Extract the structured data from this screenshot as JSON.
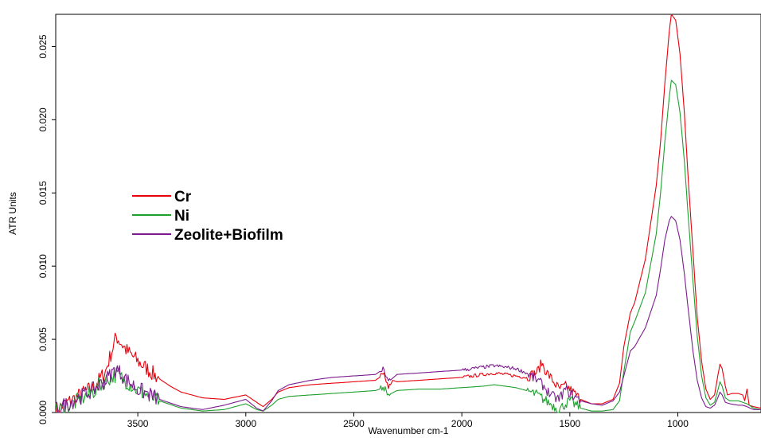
{
  "chart_data": {
    "type": "line",
    "title": "",
    "xlabel": "Wavenumber cm-1",
    "ylabel": "ATR Units",
    "xlim": [
      3880,
      615
    ],
    "ylim": [
      0,
      0.0272
    ],
    "x_reversed": true,
    "x_ticks": [
      3500,
      3000,
      2500,
      2000,
      1500,
      1000
    ],
    "x_tick_labels": [
      "3500",
      "3000",
      "2500",
      "2000",
      "1500",
      "1000"
    ],
    "y_ticks": [
      0,
      0.005,
      0.01,
      0.015,
      0.02,
      0.025
    ],
    "y_tick_labels": [
      "0.000",
      "0.005",
      "0.010",
      "0.015",
      "0.020",
      "0.025"
    ],
    "grid": false,
    "legend_position": "middle-left",
    "series": [
      {
        "name": "Cr",
        "color": "#e8000b",
        "points": [
          [
            3880,
            0.0002
          ],
          [
            3800,
            0.0009
          ],
          [
            3700,
            0.0018
          ],
          [
            3650,
            0.0028
          ],
          [
            3620,
            0.0042
          ],
          [
            3600,
            0.0052
          ],
          [
            3580,
            0.0048
          ],
          [
            3550,
            0.0042
          ],
          [
            3500,
            0.0035
          ],
          [
            3450,
            0.0029
          ],
          [
            3400,
            0.0023
          ],
          [
            3350,
            0.0018
          ],
          [
            3300,
            0.0014
          ],
          [
            3200,
            0.001
          ],
          [
            3100,
            0.0009
          ],
          [
            3000,
            0.0012
          ],
          [
            2950,
            0.0007
          ],
          [
            2920,
            0.0004
          ],
          [
            2880,
            0.0009
          ],
          [
            2850,
            0.0014
          ],
          [
            2800,
            0.0017
          ],
          [
            2700,
            0.0019
          ],
          [
            2600,
            0.002
          ],
          [
            2500,
            0.0021
          ],
          [
            2400,
            0.0022
          ],
          [
            2360,
            0.0026
          ],
          [
            2340,
            0.0016
          ],
          [
            2320,
            0.0022
          ],
          [
            2300,
            0.0021
          ],
          [
            2200,
            0.0022
          ],
          [
            2100,
            0.0023
          ],
          [
            2000,
            0.0024
          ],
          [
            1900,
            0.0026
          ],
          [
            1850,
            0.0027
          ],
          [
            1800,
            0.0026
          ],
          [
            1750,
            0.0025
          ],
          [
            1700,
            0.0024
          ],
          [
            1650,
            0.0028
          ],
          [
            1630,
            0.0034
          ],
          [
            1610,
            0.0028
          ],
          [
            1580,
            0.0022
          ],
          [
            1550,
            0.0016
          ],
          [
            1520,
            0.0018
          ],
          [
            1500,
            0.0016
          ],
          [
            1450,
            0.0009
          ],
          [
            1400,
            0.0006
          ],
          [
            1350,
            0.0006
          ],
          [
            1300,
            0.0009
          ],
          [
            1270,
            0.002
          ],
          [
            1250,
            0.0045
          ],
          [
            1220,
            0.0068
          ],
          [
            1200,
            0.0075
          ],
          [
            1150,
            0.0105
          ],
          [
            1100,
            0.0155
          ],
          [
            1080,
            0.0185
          ],
          [
            1060,
            0.0225
          ],
          [
            1040,
            0.026
          ],
          [
            1030,
            0.0272
          ],
          [
            1010,
            0.0268
          ],
          [
            990,
            0.0245
          ],
          [
            970,
            0.0205
          ],
          [
            950,
            0.0155
          ],
          [
            930,
            0.011
          ],
          [
            910,
            0.0065
          ],
          [
            890,
            0.0035
          ],
          [
            870,
            0.0016
          ],
          [
            850,
            0.0009
          ],
          [
            830,
            0.0012
          ],
          [
            815,
            0.0025
          ],
          [
            805,
            0.0033
          ],
          [
            795,
            0.003
          ],
          [
            780,
            0.0018
          ],
          [
            770,
            0.0012
          ],
          [
            750,
            0.0013
          ],
          [
            720,
            0.0013
          ],
          [
            700,
            0.0012
          ],
          [
            690,
            0.0008
          ],
          [
            680,
            0.0016
          ],
          [
            670,
            0.0005
          ],
          [
            650,
            0.0004
          ],
          [
            615,
            0.0003
          ]
        ]
      },
      {
        "name": "Ni",
        "color": "#1fa02e",
        "points": [
          [
            3880,
            0.0001
          ],
          [
            3800,
            0.0006
          ],
          [
            3700,
            0.0015
          ],
          [
            3650,
            0.0022
          ],
          [
            3600,
            0.0026
          ],
          [
            3550,
            0.0021
          ],
          [
            3500,
            0.0015
          ],
          [
            3400,
            0.0008
          ],
          [
            3300,
            0.0003
          ],
          [
            3200,
            0.0001
          ],
          [
            3100,
            0.0002
          ],
          [
            3000,
            0.0006
          ],
          [
            2950,
            0.0002
          ],
          [
            2920,
            0.0001
          ],
          [
            2880,
            0.0005
          ],
          [
            2850,
            0.0009
          ],
          [
            2800,
            0.0011
          ],
          [
            2700,
            0.0012
          ],
          [
            2600,
            0.0013
          ],
          [
            2500,
            0.0014
          ],
          [
            2400,
            0.0015
          ],
          [
            2360,
            0.0017
          ],
          [
            2340,
            0.0012
          ],
          [
            2300,
            0.0015
          ],
          [
            2200,
            0.0016
          ],
          [
            2100,
            0.0016
          ],
          [
            2000,
            0.0017
          ],
          [
            1900,
            0.0018
          ],
          [
            1850,
            0.0019
          ],
          [
            1800,
            0.0018
          ],
          [
            1750,
            0.0017
          ],
          [
            1700,
            0.0015
          ],
          [
            1650,
            0.0012
          ],
          [
            1600,
            0.0007
          ],
          [
            1550,
            0.0002
          ],
          [
            1520,
            0.0006
          ],
          [
            1500,
            0.0008
          ],
          [
            1450,
            0.0003
          ],
          [
            1400,
            0.0001
          ],
          [
            1350,
            0.0001
          ],
          [
            1300,
            0.0002
          ],
          [
            1270,
            0.0008
          ],
          [
            1250,
            0.0028
          ],
          [
            1220,
            0.0055
          ],
          [
            1200,
            0.0062
          ],
          [
            1150,
            0.0082
          ],
          [
            1100,
            0.0122
          ],
          [
            1080,
            0.015
          ],
          [
            1060,
            0.0185
          ],
          [
            1040,
            0.0215
          ],
          [
            1030,
            0.0227
          ],
          [
            1010,
            0.0224
          ],
          [
            990,
            0.0205
          ],
          [
            970,
            0.0172
          ],
          [
            950,
            0.013
          ],
          [
            930,
            0.009
          ],
          [
            910,
            0.0052
          ],
          [
            890,
            0.0025
          ],
          [
            870,
            0.001
          ],
          [
            850,
            0.0005
          ],
          [
            830,
            0.0007
          ],
          [
            815,
            0.0015
          ],
          [
            805,
            0.0021
          ],
          [
            795,
            0.0018
          ],
          [
            780,
            0.001
          ],
          [
            760,
            0.0008
          ],
          [
            720,
            0.0008
          ],
          [
            700,
            0.0007
          ],
          [
            680,
            0.0006
          ],
          [
            650,
            0.0003
          ],
          [
            615,
            0.0002
          ]
        ]
      },
      {
        "name": "Zeolite+Biofilm",
        "color": "#7b1c8e",
        "points": [
          [
            3880,
            0.0002
          ],
          [
            3800,
            0.0008
          ],
          [
            3700,
            0.0016
          ],
          [
            3650,
            0.0022
          ],
          [
            3600,
            0.003
          ],
          [
            3550,
            0.0022
          ],
          [
            3500,
            0.0016
          ],
          [
            3400,
            0.0009
          ],
          [
            3300,
            0.0004
          ],
          [
            3200,
            0.0002
          ],
          [
            3100,
            0.0005
          ],
          [
            3000,
            0.0009
          ],
          [
            2950,
            0.0003
          ],
          [
            2920,
            0.0001
          ],
          [
            2880,
            0.0008
          ],
          [
            2850,
            0.0015
          ],
          [
            2800,
            0.0019
          ],
          [
            2700,
            0.0022
          ],
          [
            2600,
            0.0024
          ],
          [
            2500,
            0.0025
          ],
          [
            2400,
            0.0026
          ],
          [
            2360,
            0.003
          ],
          [
            2340,
            0.0021
          ],
          [
            2300,
            0.0026
          ],
          [
            2200,
            0.0027
          ],
          [
            2100,
            0.0028
          ],
          [
            2000,
            0.0029
          ],
          [
            1900,
            0.0031
          ],
          [
            1850,
            0.0032
          ],
          [
            1800,
            0.0031
          ],
          [
            1750,
            0.003
          ],
          [
            1700,
            0.0027
          ],
          [
            1650,
            0.0022
          ],
          [
            1620,
            0.0018
          ],
          [
            1600,
            0.0014
          ],
          [
            1580,
            0.0011
          ],
          [
            1550,
            0.0009
          ],
          [
            1520,
            0.0016
          ],
          [
            1500,
            0.0013
          ],
          [
            1450,
            0.0008
          ],
          [
            1400,
            0.0006
          ],
          [
            1350,
            0.0005
          ],
          [
            1300,
            0.0008
          ],
          [
            1270,
            0.0014
          ],
          [
            1250,
            0.0025
          ],
          [
            1220,
            0.0042
          ],
          [
            1200,
            0.0045
          ],
          [
            1150,
            0.0058
          ],
          [
            1100,
            0.008
          ],
          [
            1080,
            0.0098
          ],
          [
            1060,
            0.0118
          ],
          [
            1040,
            0.0131
          ],
          [
            1030,
            0.0134
          ],
          [
            1010,
            0.0131
          ],
          [
            990,
            0.0118
          ],
          [
            970,
            0.0095
          ],
          [
            950,
            0.0068
          ],
          [
            930,
            0.0042
          ],
          [
            910,
            0.0022
          ],
          [
            890,
            0.001
          ],
          [
            870,
            0.0004
          ],
          [
            850,
            0.0003
          ],
          [
            830,
            0.0005
          ],
          [
            815,
            0.001
          ],
          [
            805,
            0.0014
          ],
          [
            795,
            0.0012
          ],
          [
            780,
            0.0007
          ],
          [
            760,
            0.0006
          ],
          [
            720,
            0.0005
          ],
          [
            700,
            0.0005
          ],
          [
            680,
            0.0004
          ],
          [
            650,
            0.0002
          ],
          [
            615,
            0.0002
          ]
        ]
      }
    ]
  }
}
